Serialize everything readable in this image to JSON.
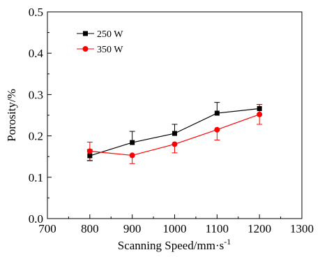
{
  "chart_data": {
    "type": "line",
    "xlabel": "Scanning Speed/mm·s",
    "xlabel_sup": "-1",
    "ylabel": "Porosity/%",
    "xlim": [
      700,
      1300
    ],
    "ylim": [
      0.0,
      0.5
    ],
    "xticks": [
      "700",
      "800",
      "900",
      "1000",
      "1100",
      "1200",
      "1300"
    ],
    "yticks": [
      "0.0",
      "0.1",
      "0.2",
      "0.3",
      "0.4",
      "0.5"
    ],
    "grid": false,
    "legend_position": "top-left",
    "x": [
      800,
      900,
      1000,
      1100,
      1200
    ],
    "series": [
      {
        "name": "250 W",
        "color": "#000000",
        "marker": "square",
        "values": [
          0.152,
          0.184,
          0.206,
          0.255,
          0.266
        ],
        "error_upper": [
          0.015,
          0.027,
          0.022,
          0.026,
          0.01
        ],
        "error_lower": [
          0.012,
          0.0,
          0.0,
          0.0,
          0.0
        ]
      },
      {
        "name": "350 W",
        "color": "#ff0000",
        "marker": "circle",
        "values": [
          0.163,
          0.153,
          0.18,
          0.215,
          0.252
        ],
        "error_upper": [
          0.022,
          0.0,
          0.0,
          0.0,
          0.024
        ],
        "error_lower": [
          0.022,
          0.02,
          0.021,
          0.025,
          0.024
        ]
      }
    ]
  }
}
